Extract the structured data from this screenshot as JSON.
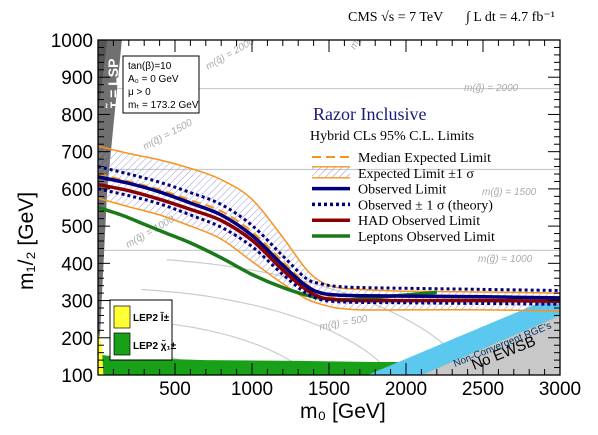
{
  "header": {
    "experiment": "CMS √s = 7 TeV",
    "lumi": "∫ L dt = 4.7 fb⁻¹"
  },
  "chart_data": {
    "type": "line",
    "title": "Razor Inclusive",
    "subtitle": "Hybrid CLs 95% C.L. Limits",
    "xlabel": "m₀ [GeV]",
    "ylabel": "m₁/₂ [GeV]",
    "xlim": [
      0,
      3000
    ],
    "ylim": [
      100,
      1000
    ],
    "xticks": [
      500,
      1000,
      1500,
      2000,
      2500,
      3000
    ],
    "yticks": [
      100,
      200,
      300,
      400,
      500,
      600,
      700,
      800,
      900,
      1000
    ],
    "parameters": [
      "tan(β)=10",
      "A₀ = 0 GeV",
      "μ > 0",
      "mₜ = 173.2 GeV"
    ],
    "series": [
      {
        "name": "Median Expected Limit",
        "color": "#f7941d",
        "style": "dashed",
        "x": [
          0,
          200,
          400,
          600,
          800,
          1000,
          1200,
          1350,
          1450,
          1550,
          1700,
          2000,
          2500,
          3000
        ],
        "y": [
          640,
          620,
          598,
          570,
          540,
          485,
          405,
          345,
          318,
          305,
          300,
          300,
          298,
          296
        ]
      },
      {
        "name": "Expected Limit ±1 σ",
        "color": "#f7941d",
        "style": "band",
        "x": [
          0,
          200,
          400,
          600,
          800,
          1000,
          1200,
          1350,
          1450,
          1550,
          1700,
          2000,
          2500,
          3000
        ],
        "upper": [
          715,
          695,
          678,
          655,
          625,
          572,
          470,
          385,
          350,
          335,
          330,
          325,
          323,
          320
        ],
        "lower": [
          575,
          552,
          530,
          500,
          465,
          405,
          345,
          305,
          290,
          280,
          275,
          275,
          275,
          272
        ]
      },
      {
        "name": "Observed Limit",
        "color": "#000080",
        "style": "solid",
        "x": [
          0,
          200,
          400,
          600,
          800,
          1000,
          1200,
          1350,
          1450,
          1550,
          1700,
          2000,
          2500,
          3000
        ],
        "y": [
          632,
          615,
          592,
          562,
          530,
          475,
          395,
          340,
          320,
          315,
          313,
          312,
          310,
          307
        ]
      },
      {
        "name": "Observed ± 1 σ (theory)",
        "color": "#000080",
        "style": "dotted",
        "x": [
          0,
          200,
          400,
          600,
          800,
          1000,
          1200,
          1350,
          1450,
          1550,
          1700,
          2000,
          2500,
          3000
        ],
        "upper": [
          660,
          640,
          618,
          590,
          558,
          502,
          420,
          360,
          345,
          338,
          335,
          333,
          330,
          327
        ],
        "lower": [
          600,
          582,
          560,
          530,
          497,
          445,
          370,
          320,
          302,
          297,
          295,
          294,
          292,
          290
        ]
      },
      {
        "name": "HAD Observed Limit",
        "color": "#8b0000",
        "style": "solid",
        "x": [
          0,
          200,
          400,
          600,
          800,
          1000,
          1200,
          1350,
          1450,
          1550,
          1700,
          2000,
          2500,
          3000
        ],
        "y": [
          612,
          595,
          572,
          545,
          515,
          462,
          382,
          330,
          308,
          302,
          300,
          300,
          300,
          298
        ]
      },
      {
        "name": "Leptons Observed Limit",
        "color": "#1a7a1a",
        "style": "solid",
        "x": [
          0,
          150,
          300,
          450,
          600,
          800,
          1000,
          1200,
          1400,
          1600,
          1800,
          2000,
          2200
        ],
        "y": [
          550,
          530,
          505,
          480,
          455,
          415,
          370,
          335,
          310,
          302,
          308,
          315,
          322
        ]
      }
    ],
    "regions": [
      {
        "name": "τ̃ = LSP",
        "color": "#707070"
      },
      {
        "name": "LEP2 l̃±",
        "color": "#ffff33"
      },
      {
        "name": "LEP2 χ̃₁±",
        "color": "#19a019"
      },
      {
        "name": "Non-Convergent RGE's",
        "color": "#5bc8f0"
      },
      {
        "name": "No EWSB",
        "color": "#c8c8c8"
      }
    ],
    "squark_contours": [
      {
        "label": "m(q̃) = 500",
        "value": 500
      },
      {
        "label": "m(q̃) = 1000",
        "value": 1000
      },
      {
        "label": "m(q̃) = 1500",
        "value": 1500
      },
      {
        "label": "m(q̃) = 2000",
        "value": 2000
      },
      {
        "label": "m(q̃) = 2500",
        "value": 2500
      }
    ],
    "gluino_contours": [
      {
        "label": "m(g̃) = 1000",
        "value": 1000
      },
      {
        "label": "m(g̃) = 1500",
        "value": 1500
      },
      {
        "label": "m(g̃) = 2000",
        "value": 2000
      }
    ],
    "legend_position": "top-right"
  }
}
